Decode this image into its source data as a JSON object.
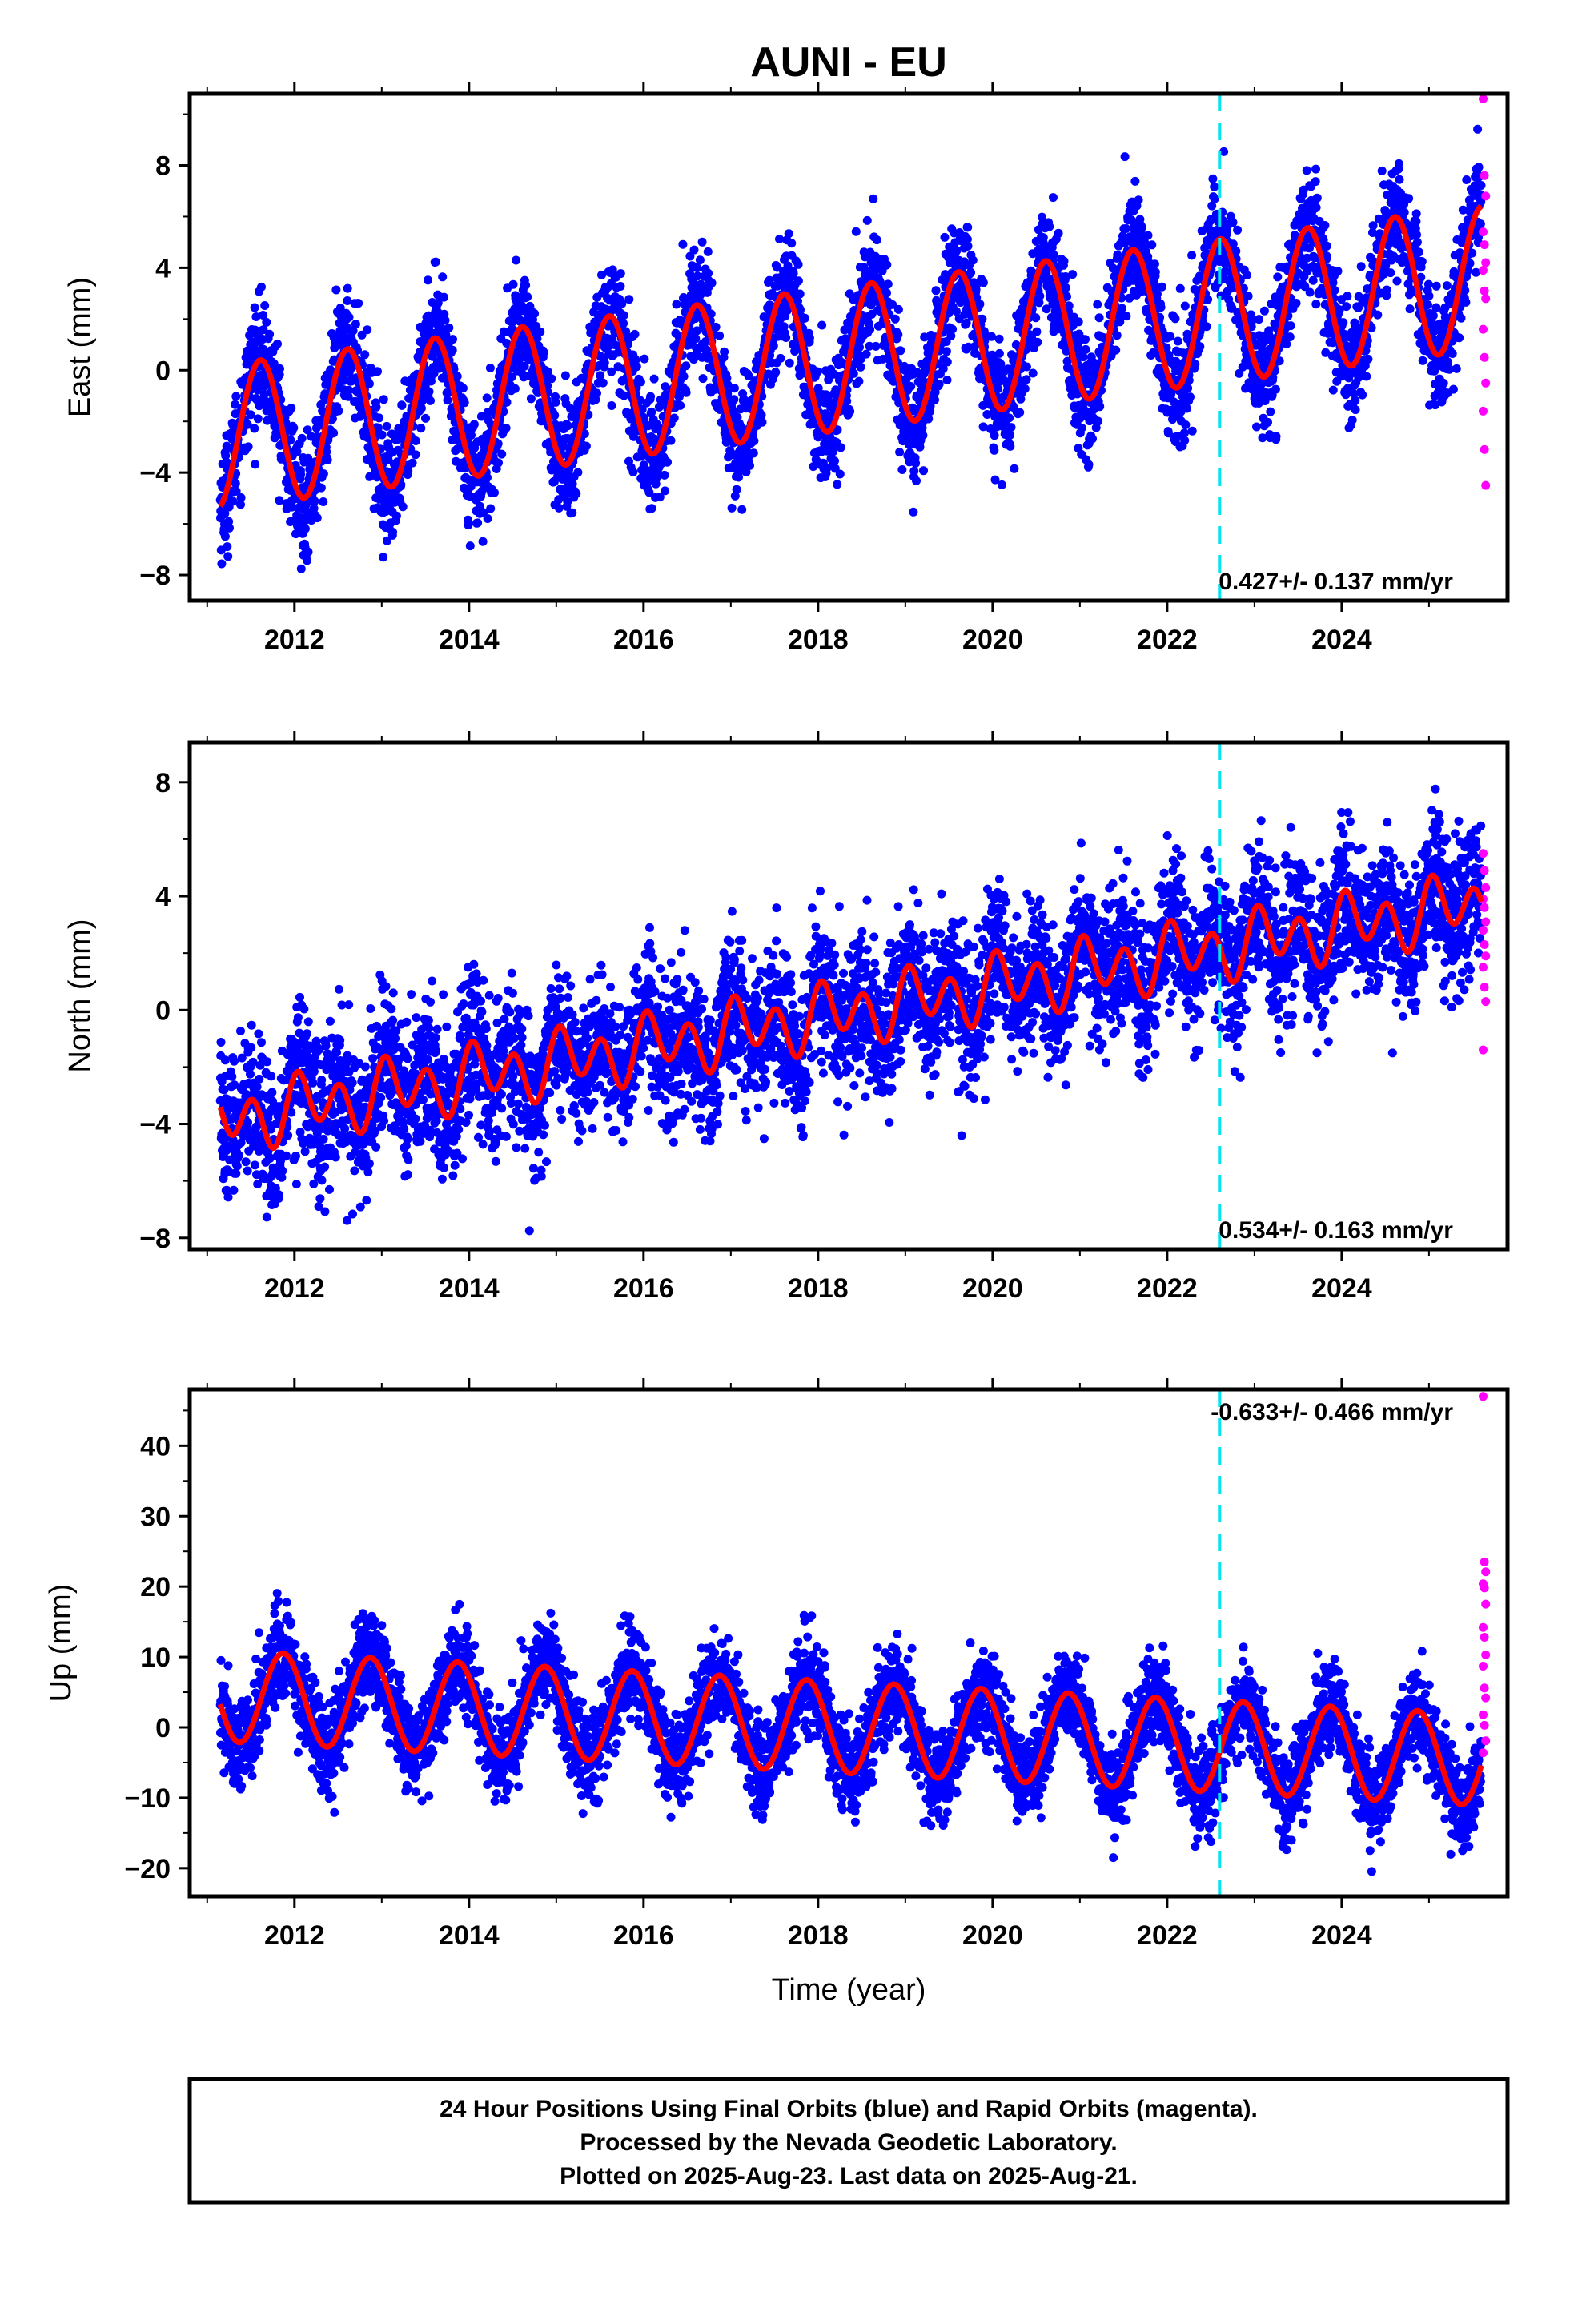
{
  "title": "AUNI - EU",
  "colors": {
    "final": "#0000ff",
    "rapid": "#ff00ff",
    "model": "#ff0000",
    "event": "#00e5ee",
    "frame": "#000000"
  },
  "chart_data": [
    {
      "type": "scatter",
      "component": "east",
      "ylabel": "East (mm)",
      "ylim": [
        -9,
        10.8
      ],
      "xlim": [
        2010.8,
        2025.9
      ],
      "yticks": [
        -8,
        -4,
        0,
        4,
        8
      ],
      "xticks": [
        2012,
        2014,
        2016,
        2018,
        2020,
        2022,
        2024
      ],
      "rate_label": "0.427+/- 0.137 mm/yr",
      "rate_position": "bottom-right",
      "event_line_x": 2022.6,
      "model": {
        "start": 2011.15,
        "end": 2025.6,
        "offset": -2.6,
        "slope": 0.43,
        "annual_amp": 2.8,
        "annual_phase_year": 2011.36,
        "noise_std": 1.1
      },
      "rapid_points": [
        10.6,
        7.6,
        6.8,
        5.4,
        4.9,
        4.2,
        3.9,
        3.1,
        2.8,
        1.6,
        0.5,
        -0.5,
        -1.6,
        -3.1,
        -4.5
      ]
    },
    {
      "type": "scatter",
      "component": "north",
      "ylabel": "North (mm)",
      "ylim": [
        -8.4,
        9.4
      ],
      "xlim": [
        2010.8,
        2025.9
      ],
      "yticks": [
        -8,
        -4,
        0,
        4,
        8
      ],
      "xticks": [
        2012,
        2014,
        2016,
        2018,
        2020,
        2022,
        2024
      ],
      "rate_label": "0.534+/- 0.163 mm/yr",
      "rate_position": "bottom-right",
      "event_line_x": 2022.6,
      "model": {
        "start": 2011.15,
        "end": 2025.6,
        "offset": -3.9,
        "slope": 0.53,
        "annual_amp": 0.5,
        "annual_phase_year": 2011.9,
        "semiannual_amp": 0.9,
        "noise_std": 1.25
      },
      "rapid_points": [
        5.5,
        4.9,
        4.3,
        3.9,
        3.6,
        3.1,
        2.8,
        2.3,
        1.9,
        1.5,
        0.8,
        0.3,
        -1.4
      ]
    },
    {
      "type": "scatter",
      "component": "up",
      "ylabel": "Up (mm)",
      "xlabel": "Time (year)",
      "ylim": [
        -24,
        48
      ],
      "xlim": [
        2010.8,
        2025.9
      ],
      "yticks": [
        -20,
        -10,
        0,
        10,
        20,
        30,
        40
      ],
      "xticks": [
        2012,
        2014,
        2016,
        2018,
        2020,
        2022,
        2024
      ],
      "rate_label": "-0.633+/- 0.466 mm/yr",
      "rate_position": "top-right",
      "event_line_x": 2022.6,
      "model": {
        "start": 2011.15,
        "end": 2025.6,
        "offset": 4.5,
        "slope": -0.63,
        "annual_amp": 6.5,
        "annual_phase_year": 2011.62,
        "noise_std": 3.1
      },
      "rapid_points": [
        47,
        23.5,
        22.1,
        20.4,
        19.8,
        17.5,
        14.2,
        12.8,
        10.3,
        8.7,
        5.6,
        4.2,
        1.8,
        0.3,
        -1.9,
        -3.6
      ]
    }
  ],
  "footer": {
    "line1": "24 Hour Positions Using Final Orbits (blue) and Rapid Orbits (magenta).",
    "line2": "Processed by the Nevada Geodetic Laboratory.",
    "line3": "Plotted on 2025-Aug-23. Last data on 2025-Aug-21."
  }
}
